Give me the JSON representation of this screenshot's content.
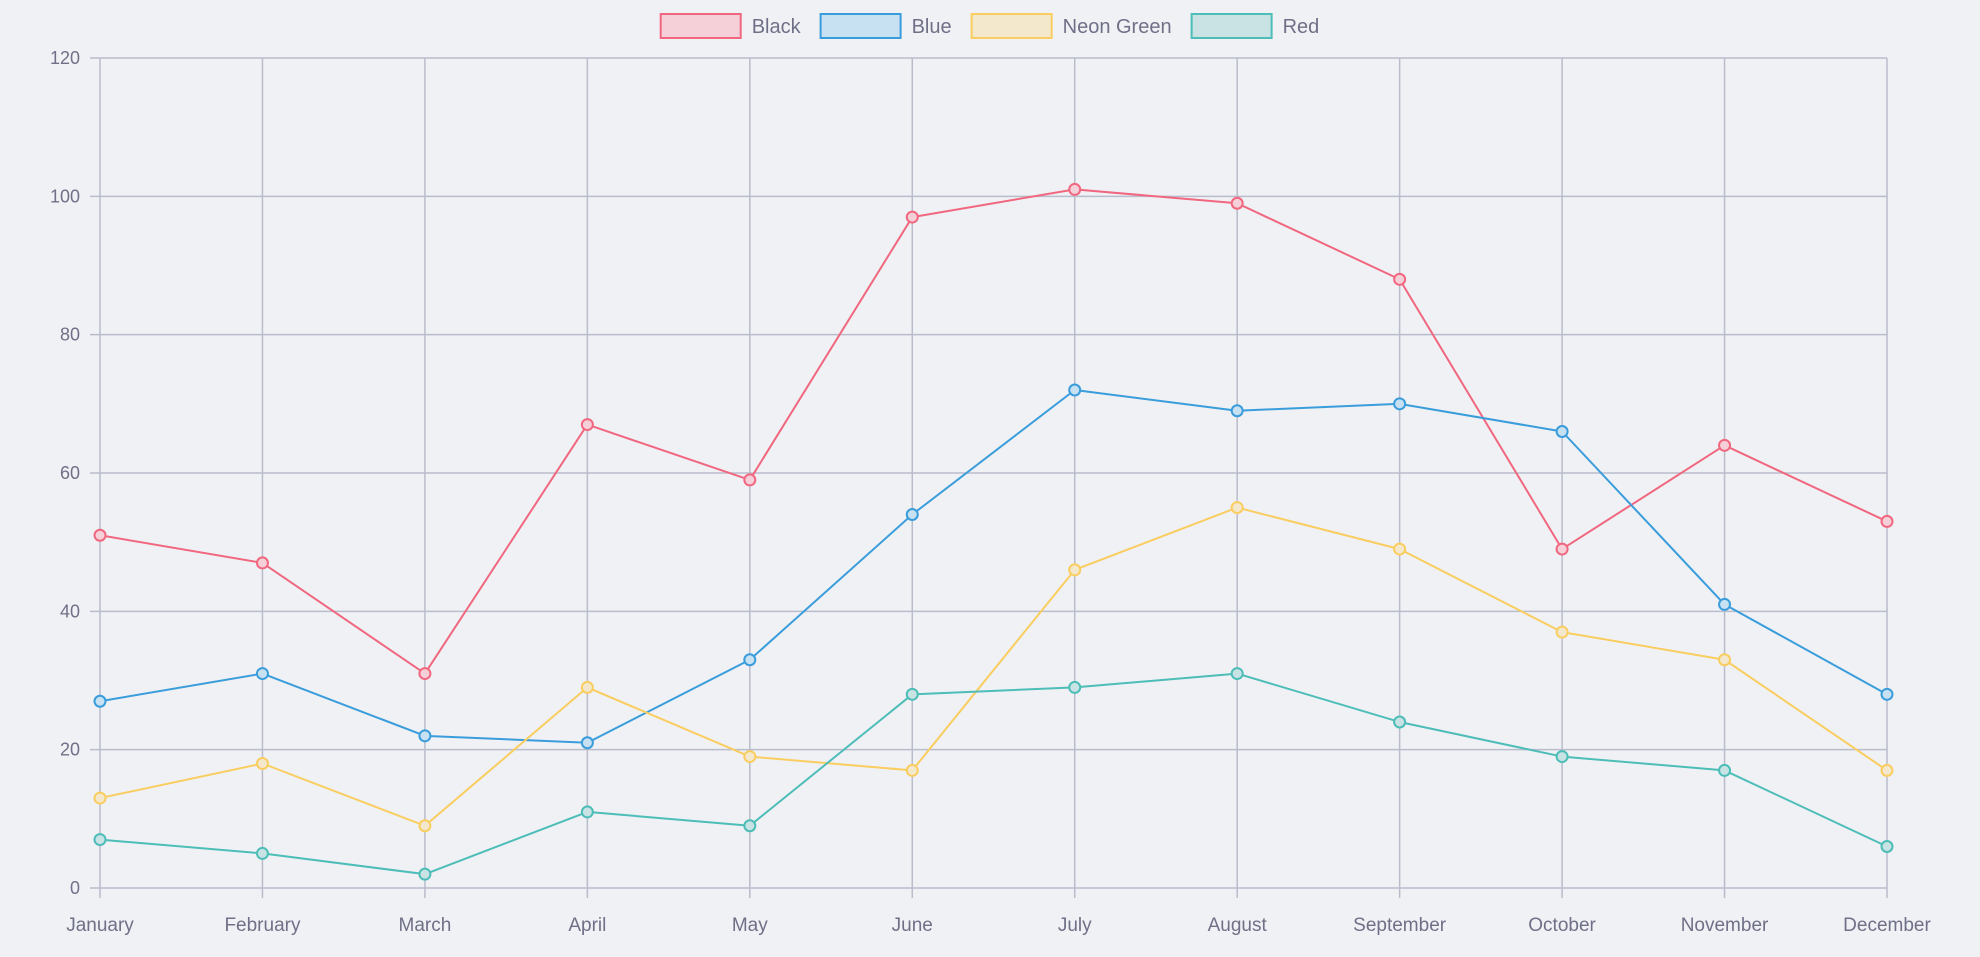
{
  "chart_data": {
    "type": "line",
    "title": "",
    "xlabel": "",
    "ylabel": "",
    "ylim": [
      0,
      120
    ],
    "y_ticks": [
      "0",
      "20",
      "40",
      "60",
      "80",
      "100",
      "120"
    ],
    "categories": [
      "January",
      "February",
      "March",
      "April",
      "May",
      "June",
      "July",
      "August",
      "September",
      "October",
      "November",
      "December"
    ],
    "grid": true,
    "legend_position": "top-center",
    "series": [
      {
        "name": "Black",
        "color": "#f0677f",
        "fill": "#f6d0d9",
        "values": [
          51,
          47,
          31,
          67,
          59,
          97,
          101,
          99,
          88,
          49,
          64,
          53
        ]
      },
      {
        "name": "Blue",
        "color": "#3a9ddb",
        "fill": "#c7e0f2",
        "values": [
          27,
          31,
          22,
          21,
          33,
          54,
          72,
          69,
          70,
          66,
          41,
          28
        ]
      },
      {
        "name": "Neon Green",
        "color": "#f9cd5f",
        "fill": "#f4e8cc",
        "values": [
          13,
          18,
          9,
          29,
          19,
          17,
          46,
          55,
          49,
          37,
          33,
          17
        ]
      },
      {
        "name": "Red",
        "color": "#4dbdb8",
        "fill": "#c9e3e5",
        "values": [
          7,
          5,
          2,
          11,
          9,
          28,
          29,
          31,
          24,
          19,
          17,
          6
        ]
      }
    ]
  }
}
